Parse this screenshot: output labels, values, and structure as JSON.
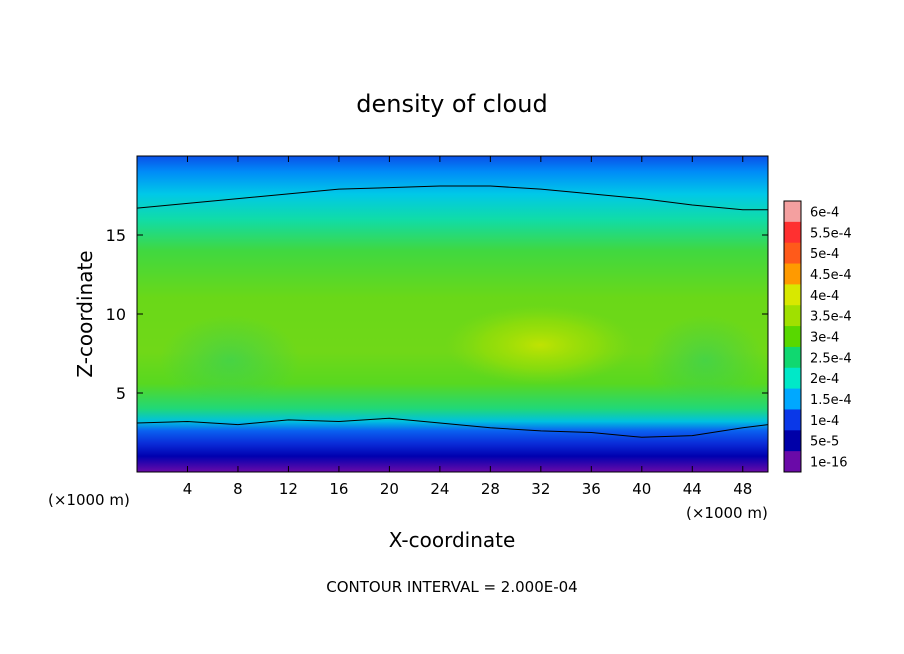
{
  "chart_data": {
    "type": "heatmap",
    "title": "density of cloud",
    "xlabel": "X-coordinate",
    "ylabel": "Z-coordinate",
    "x_unit_label": "(×1000 m)",
    "z_unit_label": "(×1000 m)",
    "xlim": [
      0,
      50
    ],
    "ylim": [
      0,
      20
    ],
    "x_ticks": [
      "4",
      "8",
      "12",
      "16",
      "20",
      "24",
      "28",
      "32",
      "36",
      "40",
      "44",
      "48"
    ],
    "y_ticks": [
      "5",
      "10",
      "15"
    ],
    "footer": "CONTOUR INTERVAL = 2.000E-04",
    "colorbar": {
      "labels": [
        "6e-4",
        "5.5e-4",
        "5e-4",
        "4.5e-4",
        "4e-4",
        "3.5e-4",
        "3e-4",
        "2.5e-4",
        "2e-4",
        "1.5e-4",
        "1e-4",
        "5e-5",
        "1e-16"
      ],
      "colors": [
        "#f4a0a0",
        "#ff3030",
        "#ff5a1a",
        "#ff9a00",
        "#d8e800",
        "#a0e000",
        "#58d800",
        "#10d870",
        "#00e8c8",
        "#00a8ff",
        "#0a38e8",
        "#0000a8",
        "#6a0aa8"
      ]
    },
    "contour_level": "2.000E-04",
    "contours": [
      {
        "x": [
          0,
          4,
          8,
          12,
          16,
          20,
          24,
          28,
          32,
          36,
          40,
          44,
          48,
          50
        ],
        "y": [
          16.7,
          17.0,
          17.3,
          17.6,
          17.9,
          18.0,
          18.1,
          18.1,
          17.9,
          17.6,
          17.3,
          16.9,
          16.6,
          16.6
        ]
      },
      {
        "x": [
          0,
          4,
          8,
          12,
          16,
          20,
          24,
          28,
          32,
          36,
          40,
          44,
          48,
          50
        ],
        "y": [
          3.1,
          3.2,
          3.0,
          3.3,
          3.2,
          3.4,
          3.1,
          2.8,
          2.6,
          2.5,
          2.2,
          2.3,
          2.8,
          3.0
        ]
      }
    ]
  }
}
